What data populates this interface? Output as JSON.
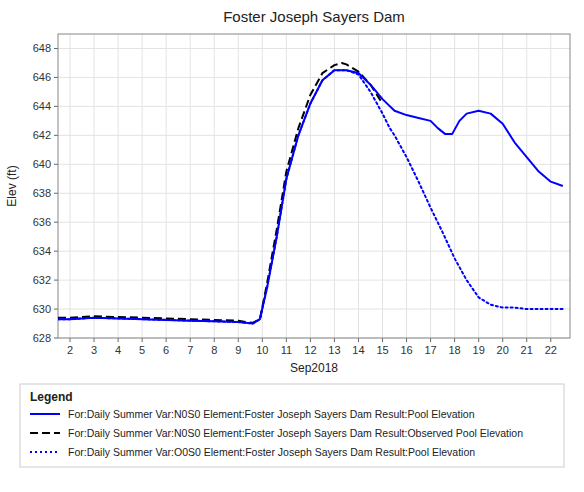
{
  "chart_data": {
    "type": "line",
    "title": "Foster Joseph Sayers Dam",
    "xlabel": "Sep2018",
    "ylabel": "Elev (ft)",
    "xlim": [
      1.5,
      22.8
    ],
    "ylim": [
      628,
      649
    ],
    "xticks": [
      2,
      3,
      4,
      5,
      6,
      7,
      8,
      9,
      10,
      11,
      12,
      13,
      14,
      15,
      16,
      17,
      18,
      19,
      20,
      21,
      22
    ],
    "yticks": [
      628,
      630,
      632,
      634,
      636,
      638,
      640,
      642,
      644,
      646,
      648
    ],
    "grid": true,
    "legend": "bottom",
    "legend_title": "Legend",
    "series": [
      {
        "name": "For:Daily Summer Var:N0S0 Element:Foster Joseph Sayers Dam Result:Pool Elevation",
        "color": "#0000ff",
        "line_style": "solid",
        "x": [
          1.5,
          2,
          3,
          4,
          5,
          6,
          7,
          8,
          9,
          9.3,
          9.6,
          9.9,
          10.2,
          10.6,
          11.0,
          11.5,
          12.0,
          12.5,
          13.0,
          13.5,
          14.0,
          14.5,
          15.0,
          15.5,
          16.0,
          16.5,
          17.0,
          17.3,
          17.6,
          17.9,
          18.2,
          18.5,
          19.0,
          19.5,
          20.0,
          20.5,
          21.0,
          21.5,
          22.0,
          22.5
        ],
        "values": [
          629.3,
          629.3,
          629.4,
          629.35,
          629.3,
          629.25,
          629.2,
          629.15,
          629.1,
          629.05,
          629.0,
          629.3,
          631.5,
          635.0,
          639.0,
          642.0,
          644.2,
          645.8,
          646.5,
          646.5,
          646.3,
          645.5,
          644.5,
          643.7,
          643.4,
          643.2,
          643.0,
          642.5,
          642.1,
          642.1,
          643.0,
          643.5,
          643.7,
          643.5,
          642.8,
          641.5,
          640.5,
          639.5,
          638.8,
          638.5
        ]
      },
      {
        "name": "For:Daily Summer Var:N0S0 Element:Foster Joseph Sayers Dam Result:Observed Pool Elevation",
        "color": "#000000",
        "line_style": "dashed",
        "x": [
          1.5,
          2,
          3,
          4,
          5,
          6,
          7,
          8,
          9,
          9.3,
          9.6,
          9.9,
          10.2,
          10.6,
          11.0,
          11.5,
          12.0,
          12.5,
          13.0,
          13.3,
          13.5,
          14.0,
          14.5,
          15.0
        ],
        "values": [
          629.4,
          629.4,
          629.5,
          629.45,
          629.4,
          629.35,
          629.3,
          629.25,
          629.2,
          629.1,
          629.05,
          629.3,
          631.8,
          635.5,
          639.5,
          642.5,
          644.8,
          646.3,
          646.85,
          647.0,
          646.9,
          646.4,
          645.5,
          644.2
        ]
      },
      {
        "name": "For:Daily Summer Var:O0S0 Element:Foster Joseph Sayers Dam Result:Pool Elevation",
        "color": "#0000ff",
        "line_style": "dotted",
        "x": [
          1.5,
          2,
          3,
          4,
          5,
          6,
          7,
          8,
          9,
          9.3,
          9.6,
          9.9,
          10.2,
          10.6,
          11.0,
          11.5,
          12.0,
          12.5,
          13.0,
          13.5,
          14.0,
          14.5,
          15.0,
          15.3,
          15.5,
          16.0,
          16.5,
          17.0,
          17.5,
          18.0,
          18.5,
          19.0,
          19.5,
          20.0,
          20.5,
          21.0,
          21.5,
          22.0,
          22.5
        ],
        "values": [
          629.3,
          629.3,
          629.4,
          629.35,
          629.3,
          629.25,
          629.2,
          629.15,
          629.1,
          629.05,
          629.0,
          629.3,
          631.5,
          635.0,
          639.0,
          642.0,
          644.2,
          645.8,
          646.5,
          646.5,
          646.2,
          645.0,
          643.5,
          642.5,
          642.0,
          640.5,
          638.8,
          637.0,
          635.3,
          633.5,
          632.0,
          630.8,
          630.3,
          630.1,
          630.1,
          630.0,
          630.0,
          630.0,
          630.0
        ]
      }
    ]
  }
}
